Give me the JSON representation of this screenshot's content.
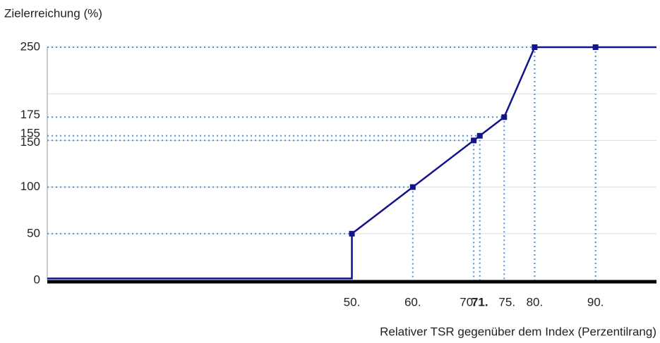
{
  "chart_data": {
    "type": "line",
    "y_axis_label": "Zielerreichung (%)",
    "x_axis_label": "Relativer TSR gegenüber dem Index (Perzentilrang)",
    "xlim": [
      0,
      100
    ],
    "ylim": [
      0,
      250
    ],
    "xticks": [
      {
        "value": 50,
        "label": "50."
      },
      {
        "value": 60,
        "label": "60."
      },
      {
        "value": 70,
        "label": "70."
      },
      {
        "value": 71,
        "label": "71."
      },
      {
        "value": 75,
        "label": "75."
      },
      {
        "value": 80,
        "label": "80."
      },
      {
        "value": 90,
        "label": "90."
      }
    ],
    "highlight_xtick": 71,
    "yticks": [
      0,
      50,
      100,
      150,
      155,
      175,
      250
    ],
    "ygrid": [
      50,
      100,
      150,
      200,
      250
    ],
    "x": [
      0,
      50,
      50,
      60,
      70,
      71,
      75,
      80,
      90,
      100
    ],
    "series": [
      {
        "color": "#14148a",
        "values": [
          2,
          2,
          50,
          100,
          150,
          155,
          175,
          250,
          250,
          250
        ]
      }
    ],
    "guide_color": "#4a90e2",
    "highlight_color": "#14148a"
  }
}
